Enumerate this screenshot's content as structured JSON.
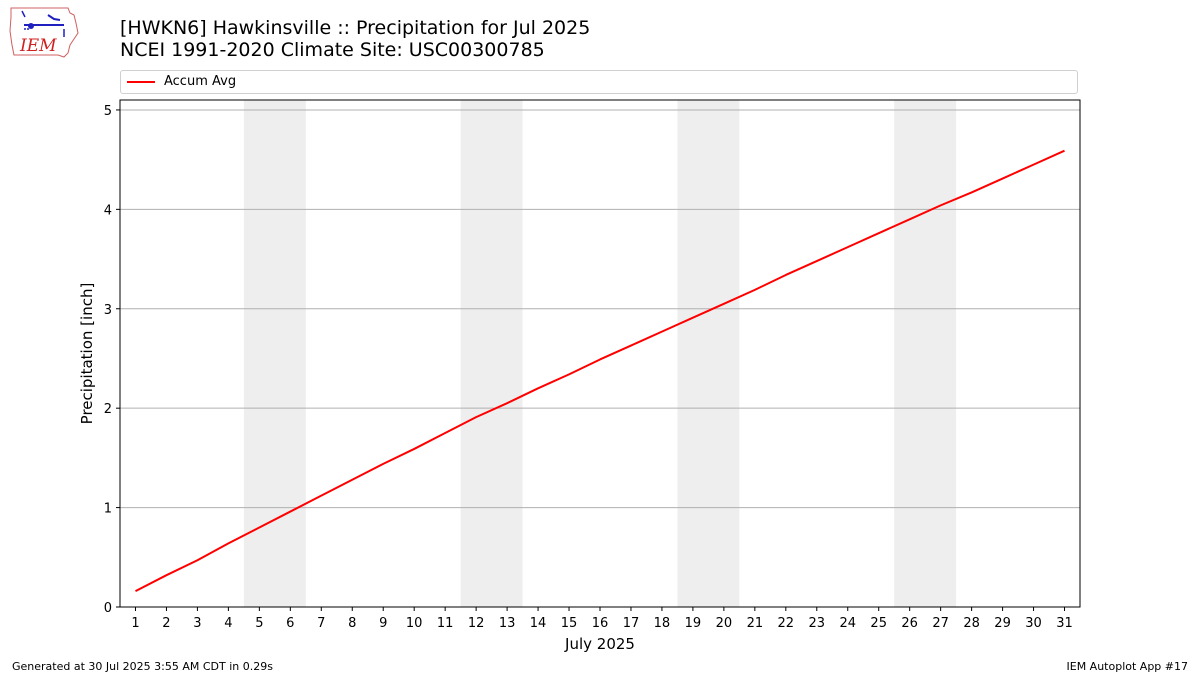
{
  "header": {
    "title_line1": "[HWKN6] Hawkinsville :: Precipitation for Jul 2025",
    "title_line2": "NCEI 1991-2020 Climate Site: USC00300785"
  },
  "logo": {
    "text": "IEM",
    "icon": "iem-logo-icon"
  },
  "legend": {
    "items": [
      {
        "label": "Accum Avg",
        "color": "#ff0000"
      }
    ]
  },
  "footer": {
    "generated": "Generated at 30 Jul 2025 3:55 AM CDT in 0.29s",
    "app": "IEM Autoplot App #17"
  },
  "chart_data": {
    "type": "line",
    "xlabel": "July 2025",
    "ylabel": "Precipitation [inch]",
    "x": [
      1,
      2,
      3,
      4,
      5,
      6,
      7,
      8,
      9,
      10,
      11,
      12,
      13,
      14,
      15,
      16,
      17,
      18,
      19,
      20,
      21,
      22,
      23,
      24,
      25,
      26,
      27,
      28,
      29,
      30,
      31
    ],
    "ylim": [
      0,
      5.1
    ],
    "yticks": [
      0,
      1,
      2,
      3,
      4,
      5
    ],
    "grid": "horizontal",
    "weekend_shading": [
      [
        5,
        6
      ],
      [
        12,
        13
      ],
      [
        19,
        20
      ],
      [
        26,
        27
      ]
    ],
    "weekend_shading_color": "#eeeeee",
    "series": [
      {
        "name": "Accum Avg",
        "color": "#ff0000",
        "values": [
          0.16,
          0.32,
          0.47,
          0.64,
          0.8,
          0.96,
          1.12,
          1.28,
          1.44,
          1.59,
          1.75,
          1.91,
          2.05,
          2.2,
          2.34,
          2.49,
          2.63,
          2.77,
          2.91,
          3.05,
          3.19,
          3.34,
          3.48,
          3.62,
          3.76,
          3.9,
          4.04,
          4.17,
          4.31,
          4.45,
          4.59
        ]
      }
    ]
  }
}
